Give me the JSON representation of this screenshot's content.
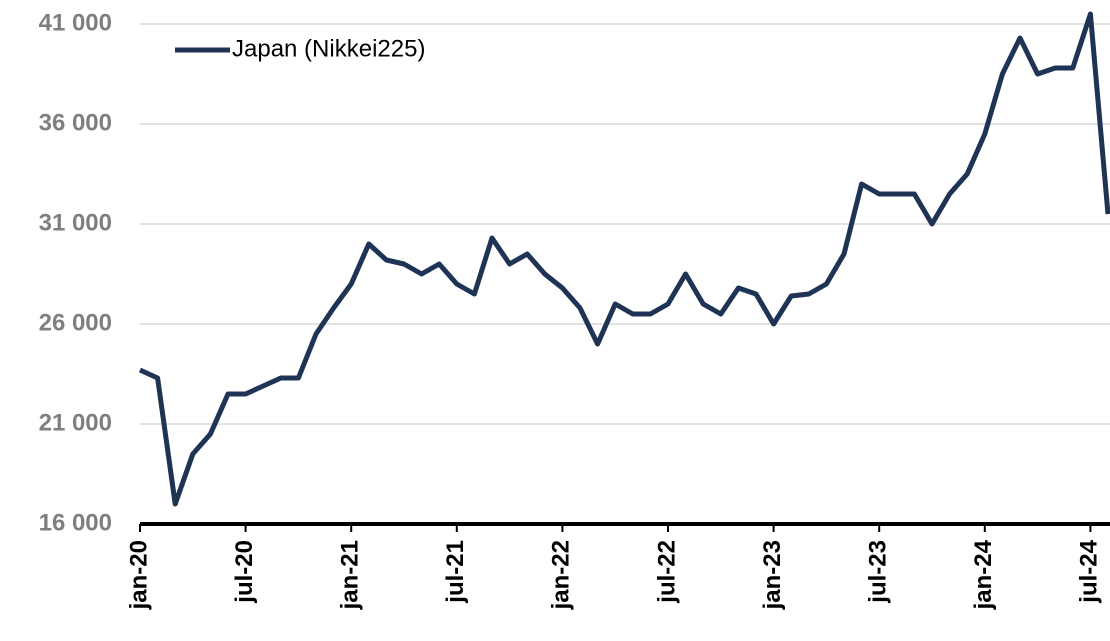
{
  "chart_data": {
    "type": "line",
    "x": [
      "2020-01",
      "2020-02",
      "2020-03",
      "2020-04",
      "2020-05",
      "2020-06",
      "2020-07",
      "2020-08",
      "2020-09",
      "2020-10",
      "2020-11",
      "2020-12",
      "2021-01",
      "2021-02",
      "2021-03",
      "2021-04",
      "2021-05",
      "2021-06",
      "2021-07",
      "2021-08",
      "2021-09",
      "2021-10",
      "2021-11",
      "2021-12",
      "2022-01",
      "2022-02",
      "2022-03",
      "2022-04",
      "2022-05",
      "2022-06",
      "2022-07",
      "2022-08",
      "2022-09",
      "2022-10",
      "2022-11",
      "2022-12",
      "2023-01",
      "2023-02",
      "2023-03",
      "2023-04",
      "2023-05",
      "2023-06",
      "2023-07",
      "2023-08",
      "2023-09",
      "2023-10",
      "2023-11",
      "2023-12",
      "2024-01",
      "2024-02",
      "2024-03",
      "2024-04",
      "2024-05",
      "2024-06",
      "2024-07",
      "2024-08"
    ],
    "series": [
      {
        "name": "Japan (Nikkei225)",
        "color": "#1f3354",
        "values": [
          23700,
          23300,
          17000,
          19500,
          20500,
          22500,
          22500,
          22900,
          23300,
          23300,
          25500,
          26800,
          28000,
          30000,
          29200,
          29000,
          28500,
          29000,
          28000,
          27500,
          30300,
          29000,
          29500,
          28500,
          27800,
          26800,
          25000,
          27000,
          26500,
          26500,
          27000,
          28500,
          27000,
          26500,
          27800,
          27500,
          26000,
          27400,
          27500,
          28000,
          29500,
          33000,
          32500,
          32500,
          32500,
          31000,
          32500,
          33500,
          35500,
          38500,
          40300,
          38500,
          38800,
          38800,
          41500,
          31500
        ]
      }
    ],
    "xlim": [
      "2020-01",
      "2024-08"
    ],
    "xticks": [
      {
        "value": "2020-01",
        "label": "jan-20"
      },
      {
        "value": "2020-07",
        "label": "jul-20"
      },
      {
        "value": "2021-01",
        "label": "jan-21"
      },
      {
        "value": "2021-07",
        "label": "jul-21"
      },
      {
        "value": "2022-01",
        "label": "jan-22"
      },
      {
        "value": "2022-07",
        "label": "jul-22"
      },
      {
        "value": "2023-01",
        "label": "jan-23"
      },
      {
        "value": "2023-07",
        "label": "jul-23"
      },
      {
        "value": "2024-01",
        "label": "jan-24"
      },
      {
        "value": "2024-07",
        "label": "jul-24"
      }
    ],
    "ylim": [
      16000,
      42200
    ],
    "yticks": [
      {
        "value": 16000,
        "label": "16 000"
      },
      {
        "value": 21000,
        "label": "21 000"
      },
      {
        "value": 26000,
        "label": "26 000"
      },
      {
        "value": 31000,
        "label": "31 000"
      },
      {
        "value": 36000,
        "label": "36 000"
      },
      {
        "value": 41000,
        "label": "41 000"
      }
    ],
    "grid": true,
    "legend": "upper left"
  }
}
